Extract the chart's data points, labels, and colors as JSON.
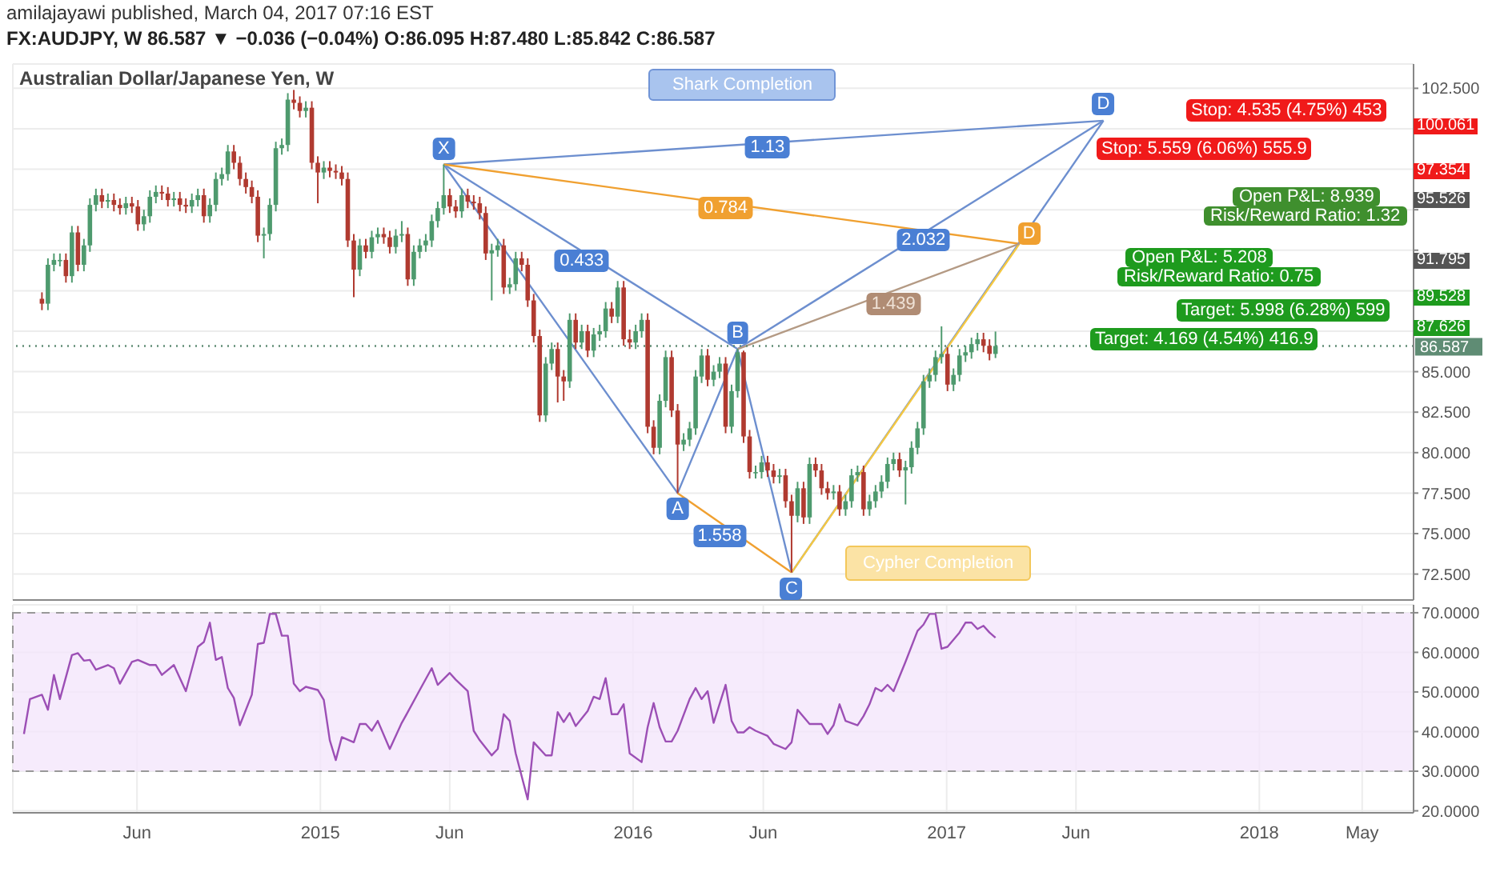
{
  "chart_data": [
    {
      "type": "candlestick",
      "title": "Australian Dollar/Japanese Yen, W",
      "subtitle": "FX:AUDJPY, W 86.587 ▼ −0.036 (−0.04%) O:86.095 H:87.480 L:85.842 C:86.587",
      "colors": [
        "#b03a30",
        "#4e9a6e",
        "#4e9a6e",
        "#4e9a6e",
        "#b03a30",
        "#4e9a6e",
        "#b03a30",
        "#4e9a6e",
        "#4e9a6e",
        "#4e9a6e",
        "#b03a30",
        "#4e9a6e",
        "#b03a30",
        "#b03a30",
        "#4e9a6e",
        "#b03a30",
        "#b03a30",
        "#4e9a6e",
        "#4e9a6e",
        "#4e9a6e",
        "#b03a30",
        "#b03a30",
        "#4e9a6e",
        "#b03a30",
        "#b03a30",
        "#4e9a6e",
        "#4e9a6e",
        "#b03a30",
        "#4e9a6e",
        "#4e9a6e",
        "#4e9a6e",
        "#4e9a6e",
        "#b03a30",
        "#b03a30",
        "#b03a30",
        "#b03a30",
        "#b03a30",
        "#4e9a6e",
        "#4e9a6e",
        "#4e9a6e",
        "#4e9a6e",
        "#4e9a6e",
        "#b03a30",
        "#b03a30",
        "#4e9a6e",
        "#b03a30",
        "#b03a30",
        "#4e9a6e",
        "#b03a30",
        "#b03a30",
        "#b03a30",
        "#b03a30",
        "#b03a30",
        "#4e9a6e",
        "#b03a30",
        "#4e9a6e",
        "#4e9a6e",
        "#b03a30",
        "#b03a30",
        "#4e9a6e",
        "#4e9a6e",
        "#b03a30",
        "#4e9a6e",
        "#4e9a6e",
        "#4e9a6e",
        "#4e9a6e",
        "#4e9a6e",
        "#4e9a6e",
        "#b03a30",
        "#b03a30",
        "#4e9a6e",
        "#b03a30",
        "#b03a30",
        "#b03a30",
        "#b03a30",
        "#4e9a6e",
        "#4e9a6e",
        "#b03a30",
        "#4e9a6e",
        "#4e9a6e",
        "#b03a30",
        "#b03a30",
        "#b03a30",
        "#b03a30",
        "#4e9a6e",
        "#4e9a6e",
        "#b03a30",
        "#b03a30",
        "#4e9a6e",
        "#b03a30",
        "#4e9a6e",
        "#b03a30",
        "#4e9a6e",
        "#4e9a6e",
        "#4e9a6e",
        "#b03a30",
        "#4e9a6e",
        "#b03a30",
        "#b03a30",
        "#4e9a6e",
        "#4e9a6e",
        "#b03a30",
        "#b03a30",
        "#4e9a6e",
        "#4e9a6e",
        "#b03a30",
        "#b03a30",
        "#4e9a6e",
        "#4e9a6e",
        "#4e9a6e",
        "#4e9a6e",
        "#b03a30",
        "#4e9a6e",
        "#4e9a6e",
        "#b03a30",
        "#4e9a6e",
        "#4e9a6e",
        "#b03a30",
        "#b03a30",
        "#4e9a6e",
        "#4e9a6e",
        "#b03a30",
        "#b03a30",
        "#4e9a6e",
        "#b03a30",
        "#b03a30",
        "#4e9a6e",
        "#b03a30",
        "#4e9a6e",
        "#b03a30",
        "#b03a30",
        "#b03a30",
        "#4e9a6e",
        "#b03a30",
        "#4e9a6e",
        "#4e9a6e",
        "#4e9a6e",
        "#b03a30",
        "#4e9a6e",
        "#4e9a6e",
        "#4e9a6e",
        "#4e9a6e",
        "#4e9a6e",
        "#b03a30",
        "#4e9a6e",
        "#4e9a6e",
        "#4e9a6e",
        "#4e9a6e",
        "#4e9a6e",
        "#4e9a6e",
        "#4e9a6e",
        "#b03a30",
        "#4e9a6e",
        "#4e9a6e",
        "#4e9a6e",
        "#4e9a6e",
        "#4e9a6e",
        "#b03a30",
        "#b03a30",
        "#4e9a6e"
      ],
      "x": [
        "2014-02-10",
        "2014-02-17",
        "2014-02-24",
        "2014-03-03",
        "2014-03-10",
        "2014-03-17",
        "2014-03-24",
        "2014-03-31",
        "2014-04-07",
        "2014-04-14",
        "2014-04-21",
        "2014-04-28",
        "2014-05-05",
        "2014-05-12",
        "2014-05-19",
        "2014-05-26",
        "2014-06-02",
        "2014-06-09",
        "2014-06-16",
        "2014-06-23",
        "2014-06-30",
        "2014-07-07",
        "2014-07-14",
        "2014-07-21",
        "2014-07-28",
        "2014-08-04",
        "2014-08-11",
        "2014-08-18",
        "2014-08-25",
        "2014-09-01",
        "2014-09-08",
        "2014-09-15",
        "2014-09-22",
        "2014-09-29",
        "2014-10-06",
        "2014-10-13",
        "2014-10-20",
        "2014-10-27",
        "2014-11-03",
        "2014-11-10",
        "2014-11-17",
        "2014-11-24",
        "2014-12-01",
        "2014-12-08",
        "2014-12-15",
        "2014-12-22",
        "2014-12-29",
        "2015-01-05",
        "2015-01-12",
        "2015-01-19",
        "2015-01-26",
        "2015-02-02",
        "2015-02-09",
        "2015-02-16",
        "2015-02-23",
        "2015-03-02",
        "2015-03-09",
        "2015-03-16",
        "2015-03-23",
        "2015-03-30",
        "2015-04-06",
        "2015-04-13",
        "2015-04-20",
        "2015-04-27",
        "2015-05-04",
        "2015-05-11",
        "2015-05-18",
        "2015-05-25",
        "2015-06-01",
        "2015-06-08",
        "2015-06-15",
        "2015-06-22",
        "2015-06-29",
        "2015-07-06",
        "2015-07-13",
        "2015-07-20",
        "2015-07-27",
        "2015-08-03",
        "2015-08-10",
        "2015-08-17",
        "2015-08-24",
        "2015-08-31",
        "2015-09-07",
        "2015-09-14",
        "2015-09-21",
        "2015-09-28",
        "2015-10-05",
        "2015-10-12",
        "2015-10-19",
        "2015-10-26",
        "2015-11-02",
        "2015-11-09",
        "2015-11-16",
        "2015-11-23",
        "2015-11-30",
        "2015-12-07",
        "2015-12-14",
        "2015-12-21",
        "2015-12-28",
        "2016-01-04",
        "2016-01-11",
        "2016-01-18",
        "2016-01-25",
        "2016-02-01",
        "2016-02-08",
        "2016-02-15",
        "2016-02-22",
        "2016-02-29",
        "2016-03-07",
        "2016-03-14",
        "2016-03-21",
        "2016-03-28",
        "2016-04-04",
        "2016-04-11",
        "2016-04-18",
        "2016-04-25",
        "2016-05-02",
        "2016-05-09",
        "2016-05-16",
        "2016-05-23",
        "2016-05-30",
        "2016-06-06",
        "2016-06-13",
        "2016-06-20",
        "2016-06-27",
        "2016-07-04",
        "2016-07-11",
        "2016-07-18",
        "2016-07-25",
        "2016-08-01",
        "2016-08-08",
        "2016-08-15",
        "2016-08-22",
        "2016-08-29",
        "2016-09-05",
        "2016-09-12",
        "2016-09-19",
        "2016-09-26",
        "2016-10-03",
        "2016-10-10",
        "2016-10-17",
        "2016-10-24",
        "2016-10-31",
        "2016-11-07",
        "2016-11-14",
        "2016-11-21",
        "2016-11-28",
        "2016-12-05",
        "2016-12-12",
        "2016-12-19",
        "2016-12-26",
        "2017-01-02",
        "2017-01-09",
        "2017-01-16",
        "2017-01-23",
        "2017-01-30",
        "2017-02-06",
        "2017-02-13",
        "2017-02-20",
        "2017-02-27"
      ],
      "ohlc": [
        [
          89.5,
          89.9,
          88.8,
          89.2
        ],
        [
          89.2,
          92.0,
          88.8,
          91.6
        ],
        [
          91.6,
          92.3,
          91.2,
          91.9
        ],
        [
          91.9,
          92.3,
          91.5,
          91.9
        ],
        [
          91.9,
          92.3,
          90.5,
          90.9
        ],
        [
          90.9,
          94.0,
          90.5,
          93.6
        ],
        [
          93.6,
          94.0,
          91.2,
          91.6
        ],
        [
          91.6,
          93.2,
          91.2,
          92.8
        ],
        [
          92.8,
          95.7,
          92.4,
          95.3
        ],
        [
          95.3,
          96.3,
          94.9,
          95.9
        ],
        [
          95.9,
          96.3,
          95.1,
          95.5
        ],
        [
          95.5,
          96.0,
          95.1,
          95.6
        ],
        [
          95.6,
          96.0,
          94.9,
          95.3
        ],
        [
          95.3,
          95.7,
          94.7,
          95.1
        ],
        [
          95.1,
          95.8,
          94.7,
          95.4
        ],
        [
          95.4,
          95.8,
          94.8,
          95.2
        ],
        [
          95.2,
          95.6,
          93.7,
          94.1
        ],
        [
          94.1,
          95.0,
          93.7,
          94.6
        ],
        [
          94.6,
          96.2,
          94.2,
          95.8
        ],
        [
          95.8,
          96.5,
          95.4,
          96.1
        ],
        [
          96.1,
          96.5,
          95.6,
          96.0
        ],
        [
          96.0,
          96.4,
          95.2,
          95.6
        ],
        [
          95.6,
          96.1,
          95.2,
          95.7
        ],
        [
          95.7,
          96.1,
          94.9,
          95.3
        ],
        [
          95.3,
          95.7,
          94.8,
          95.2
        ],
        [
          95.2,
          96.0,
          94.8,
          95.6
        ],
        [
          95.6,
          96.3,
          95.2,
          95.9
        ],
        [
          95.9,
          96.3,
          94.2,
          94.6
        ],
        [
          94.6,
          95.7,
          94.2,
          95.3
        ],
        [
          95.3,
          97.3,
          94.9,
          96.9
        ],
        [
          96.9,
          97.6,
          96.5,
          97.2
        ],
        [
          97.2,
          99.0,
          96.8,
          98.6
        ],
        [
          98.6,
          99.0,
          97.5,
          97.9
        ],
        [
          97.9,
          98.3,
          96.5,
          96.9
        ],
        [
          96.9,
          97.3,
          96.0,
          96.4
        ],
        [
          96.4,
          96.8,
          95.4,
          95.8
        ],
        [
          95.8,
          96.2,
          93.0,
          93.4
        ],
        [
          93.4,
          93.9,
          92.0,
          93.5
        ],
        [
          93.5,
          95.7,
          93.1,
          95.3
        ],
        [
          95.3,
          99.2,
          94.9,
          98.8
        ],
        [
          98.8,
          99.4,
          98.4,
          99.0
        ],
        [
          99.0,
          102.2,
          98.6,
          101.8
        ],
        [
          101.8,
          102.4,
          101.2,
          101.6
        ],
        [
          101.6,
          102.0,
          100.7,
          101.1
        ],
        [
          101.1,
          101.7,
          100.7,
          101.3
        ],
        [
          101.3,
          101.7,
          97.5,
          97.9
        ],
        [
          97.9,
          98.3,
          95.4,
          97.3
        ],
        [
          97.3,
          98.0,
          96.9,
          97.6
        ],
        [
          97.6,
          98.0,
          97.0,
          97.4
        ],
        [
          97.4,
          97.8,
          96.9,
          97.3
        ],
        [
          97.3,
          97.7,
          96.5,
          96.9
        ],
        [
          96.9,
          97.3,
          92.7,
          93.1
        ],
        [
          93.1,
          93.5,
          89.6,
          91.3
        ],
        [
          91.3,
          93.2,
          90.9,
          92.8
        ],
        [
          92.8,
          93.2,
          92.0,
          92.4
        ],
        [
          92.4,
          93.7,
          92.0,
          93.3
        ],
        [
          93.3,
          93.9,
          92.9,
          93.5
        ],
        [
          93.5,
          93.9,
          92.9,
          93.3
        ],
        [
          93.3,
          93.7,
          92.3,
          92.7
        ],
        [
          92.7,
          93.8,
          92.3,
          93.4
        ],
        [
          93.4,
          94.3,
          93.0,
          93.5
        ],
        [
          93.5,
          93.9,
          90.3,
          90.7
        ],
        [
          90.7,
          92.8,
          90.3,
          92.4
        ],
        [
          92.4,
          93.2,
          92.0,
          92.8
        ],
        [
          92.8,
          93.5,
          92.4,
          93.1
        ],
        [
          93.1,
          94.7,
          92.7,
          94.3
        ],
        [
          94.3,
          95.5,
          93.9,
          95.1
        ],
        [
          95.1,
          97.8,
          94.7,
          95.9
        ],
        [
          95.9,
          96.3,
          94.8,
          95.2
        ],
        [
          95.2,
          95.6,
          94.5,
          94.9
        ],
        [
          94.9,
          96.3,
          94.5,
          95.9
        ],
        [
          95.9,
          96.3,
          95.1,
          95.5
        ],
        [
          95.5,
          95.9,
          95.0,
          95.4
        ],
        [
          95.4,
          95.8,
          94.4,
          94.8
        ],
        [
          94.8,
          95.2,
          91.9,
          92.3
        ],
        [
          92.3,
          92.9,
          89.4,
          92.5
        ],
        [
          92.5,
          93.2,
          92.1,
          92.8
        ],
        [
          92.8,
          93.2,
          89.8,
          90.2
        ],
        [
          90.2,
          90.8,
          89.8,
          90.4
        ],
        [
          90.4,
          92.4,
          90.0,
          92.0
        ],
        [
          92.0,
          92.4,
          91.2,
          91.6
        ],
        [
          91.6,
          92.0,
          89.0,
          89.4
        ],
        [
          89.4,
          89.8,
          86.8,
          87.2
        ],
        [
          87.2,
          87.6,
          81.9,
          82.3
        ],
        [
          82.3,
          85.9,
          81.9,
          85.5
        ],
        [
          85.5,
          86.8,
          85.1,
          86.4
        ],
        [
          86.4,
          86.8,
          83.1,
          84.7
        ],
        [
          84.7,
          85.1,
          83.2,
          84.4
        ],
        [
          84.4,
          88.6,
          84.0,
          88.2
        ],
        [
          88.2,
          88.6,
          86.4,
          86.8
        ],
        [
          86.8,
          87.9,
          86.4,
          87.5
        ],
        [
          87.5,
          87.9,
          85.9,
          86.3
        ],
        [
          86.3,
          87.7,
          85.9,
          87.3
        ],
        [
          87.3,
          87.9,
          86.9,
          87.5
        ],
        [
          87.5,
          89.3,
          87.1,
          88.9
        ],
        [
          88.9,
          89.3,
          88.0,
          88.4
        ],
        [
          88.4,
          90.6,
          88.0,
          90.2
        ],
        [
          90.2,
          90.6,
          86.6,
          87.0
        ],
        [
          87.0,
          87.6,
          86.4,
          86.8
        ],
        [
          86.8,
          87.9,
          86.4,
          87.5
        ],
        [
          87.5,
          88.6,
          87.1,
          88.2
        ],
        [
          88.2,
          88.6,
          81.2,
          81.6
        ],
        [
          81.6,
          82.0,
          79.9,
          80.3
        ],
        [
          80.3,
          83.6,
          79.9,
          83.2
        ],
        [
          83.2,
          86.3,
          82.8,
          85.9
        ],
        [
          85.9,
          86.3,
          82.2,
          82.6
        ],
        [
          82.6,
          83.0,
          77.5,
          80.5
        ],
        [
          80.5,
          81.2,
          80.1,
          80.8
        ],
        [
          80.8,
          81.9,
          80.4,
          81.5
        ],
        [
          81.5,
          85.1,
          81.1,
          84.7
        ],
        [
          84.7,
          86.4,
          84.3,
          86.0
        ],
        [
          86.0,
          86.4,
          84.1,
          84.5
        ],
        [
          84.5,
          85.4,
          84.1,
          85.0
        ],
        [
          85.0,
          85.9,
          84.6,
          85.5
        ],
        [
          85.5,
          85.9,
          81.2,
          81.6
        ],
        [
          81.6,
          84.2,
          81.2,
          83.8
        ],
        [
          83.8,
          86.4,
          83.4,
          86.2
        ],
        [
          86.2,
          86.3,
          80.6,
          81.0
        ],
        [
          81.0,
          81.4,
          78.4,
          78.8
        ],
        [
          78.8,
          79.2,
          78.4,
          78.8
        ],
        [
          78.8,
          79.8,
          78.4,
          79.4
        ],
        [
          79.4,
          79.8,
          78.5,
          78.9
        ],
        [
          78.9,
          79.3,
          78.1,
          78.5
        ],
        [
          78.5,
          79.0,
          78.1,
          78.6
        ],
        [
          78.6,
          79.0,
          76.6,
          77.0
        ],
        [
          77.0,
          77.4,
          72.6,
          76.1
        ],
        [
          76.1,
          78.2,
          75.7,
          77.8
        ],
        [
          77.8,
          78.2,
          75.6,
          76.0
        ],
        [
          76.0,
          79.7,
          75.6,
          79.3
        ],
        [
          79.3,
          79.7,
          78.5,
          78.9
        ],
        [
          78.9,
          79.3,
          77.4,
          77.8
        ],
        [
          77.8,
          78.2,
          77.1,
          77.5
        ],
        [
          77.5,
          78.0,
          77.1,
          77.6
        ],
        [
          77.6,
          78.0,
          76.1,
          76.5
        ],
        [
          76.5,
          77.4,
          76.1,
          77.0
        ],
        [
          77.0,
          79.0,
          76.6,
          78.6
        ],
        [
          78.6,
          79.2,
          78.2,
          78.8
        ],
        [
          78.8,
          79.2,
          76.1,
          76.5
        ],
        [
          76.5,
          77.4,
          76.1,
          77.0
        ],
        [
          77.0,
          78.0,
          76.6,
          77.6
        ],
        [
          77.6,
          78.6,
          77.2,
          78.2
        ],
        [
          78.2,
          79.7,
          77.8,
          79.3
        ],
        [
          79.3,
          80.0,
          78.9,
          79.6
        ],
        [
          79.6,
          80.0,
          78.5,
          78.9
        ],
        [
          78.9,
          79.5,
          76.8,
          79.1
        ],
        [
          79.1,
          80.7,
          78.7,
          80.3
        ],
        [
          80.3,
          81.9,
          79.9,
          81.5
        ],
        [
          81.5,
          84.8,
          81.1,
          84.4
        ],
        [
          84.4,
          85.2,
          84.0,
          84.8
        ],
        [
          84.8,
          86.3,
          84.4,
          85.9
        ],
        [
          85.9,
          87.8,
          85.5,
          86.1
        ],
        [
          86.1,
          86.5,
          83.8,
          84.2
        ],
        [
          84.2,
          85.2,
          83.8,
          84.8
        ],
        [
          84.8,
          86.4,
          84.4,
          86.0
        ],
        [
          86.0,
          86.6,
          85.6,
          86.2
        ],
        [
          86.2,
          87.1,
          85.8,
          86.7
        ],
        [
          86.7,
          87.4,
          86.3,
          87.0
        ],
        [
          87.0,
          87.4,
          86.2,
          86.6
        ],
        [
          86.6,
          87.0,
          85.7,
          86.1
        ],
        [
          86.095,
          87.48,
          85.842,
          86.587
        ]
      ],
      "series": [
        {
          "type": "line",
          "color": "#6d8fcf",
          "x": [
            "2015-05-25",
            "2016-02-22",
            "2016-05-02",
            "2016-07-04"
          ],
          "values": [
            97.8,
            77.5,
            86.4,
            72.6
          ]
        },
        {
          "type": "line",
          "color": "#6d8fcf",
          "x": [
            "2015-05-25",
            "2016-05-02"
          ],
          "values": [
            97.8,
            86.4
          ]
        },
        {
          "type": "line",
          "color": "#f0a030",
          "x": [
            "2016-02-22",
            "2016-07-04"
          ],
          "values": [
            77.5,
            72.6
          ]
        },
        {
          "type": "line",
          "color": "#6d8fcf",
          "x": [
            "2015-05-25",
            "2017-07-03"
          ],
          "values": [
            97.8,
            100.5
          ]
        },
        {
          "type": "line",
          "color": "#f0a030",
          "x": [
            "2015-05-25",
            "2017-03-27"
          ],
          "values": [
            97.8,
            92.9
          ]
        },
        {
          "type": "line",
          "color": "#6d8fcf",
          "x": [
            "2016-07-04",
            "2017-07-03"
          ],
          "values": [
            72.6,
            100.5
          ]
        },
        {
          "type": "line",
          "color": "#6d8fcf",
          "x": [
            "2016-05-02",
            "2017-07-03"
          ],
          "values": [
            86.4,
            100.5
          ]
        },
        {
          "type": "line",
          "color": "#f5c842",
          "x": [
            "2016-07-04",
            "2017-03-27"
          ],
          "values": [
            72.6,
            92.9
          ]
        },
        {
          "type": "line",
          "color": "#b49a84",
          "x": [
            "2016-05-02",
            "2017-03-27"
          ],
          "values": [
            86.4,
            92.9
          ]
        }
      ],
      "annotations": [
        "amilajayawi published, March 04, 2017 07:16 EST",
        {
          "text": "X",
          "x": "2015-05-25",
          "y": 97.8
        },
        {
          "text": "A",
          "x": "2016-02-22",
          "y": 77.5
        },
        {
          "text": "B",
          "x": "2016-05-02",
          "y": 86.4
        },
        {
          "text": "C",
          "x": "2016-07-04",
          "y": 72.6
        },
        {
          "text": "D",
          "x": "2017-07-03",
          "y": 100.5
        },
        {
          "text": "D",
          "x": "2017-03-27",
          "y": 92.9
        },
        {
          "text": "0.433",
          "x": "2015-11-02",
          "y": 91.8
        },
        {
          "text": "1.558",
          "x": "2016-04-11",
          "y": 74.9
        },
        {
          "text": "1.13",
          "x": "2016-06-06",
          "y": 98.9
        },
        {
          "text": "0.784",
          "x": "2016-04-18",
          "y": 95.1
        },
        {
          "text": "2.032",
          "x": "2016-12-05",
          "y": 93.1
        },
        {
          "text": "1.439",
          "x": "2016-10-31",
          "y": 89.2
        },
        "Shark Completion",
        "Cypher Completion",
        "Stop: 4.535 (4.75%) 453",
        "Stop: 5.559 (6.06%) 555.9",
        "Open P&L: 8.939",
        "Risk/Reward Ratio: 1.32",
        "Open P&L: 5.208",
        "Risk/Reward Ratio: 0.75",
        "Target: 5.998 (6.28%) 599",
        "Target: 4.169 (4.54%) 416.9",
        "100.061",
        "97.354",
        "95.526",
        "91.795",
        "89.528",
        "87.626"
      ],
      "ref_lines": [
        {
          "axis": "y",
          "value": 86.587,
          "label": "86.587",
          "color": "#5f8c74",
          "line_style": "dotted"
        }
      ],
      "xlim": [
        "2014-01-07",
        "2018-06-30"
      ],
      "xticks": [
        {
          "value": "2014-06-01",
          "label": null
        },
        {
          "value": "2015-01-01",
          "label": null
        },
        {
          "value": "2015-06-01",
          "label": null
        },
        {
          "value": "2016-01-01",
          "label": null
        },
        {
          "value": "2016-06-01",
          "label": null
        },
        {
          "value": "2017-01-01",
          "label": null
        },
        {
          "value": "2017-06-01",
          "label": null
        },
        {
          "value": "2018-01-01",
          "label": null
        },
        {
          "value": "2018-05-01",
          "label": null
        }
      ],
      "ylim": [
        70.9,
        104.0
      ],
      "yticks": [
        {
          "value": 72.5,
          "label": "72.500"
        },
        {
          "value": 75,
          "label": "75.000"
        },
        {
          "value": 77.5,
          "label": "77.500"
        },
        {
          "value": 80,
          "label": "80.000"
        },
        {
          "value": 82.5,
          "label": "82.500"
        },
        {
          "value": 85,
          "label": "85.000"
        },
        {
          "value": 87.5,
          "label": null
        },
        {
          "value": 90,
          "label": null
        },
        {
          "value": 92.5,
          "label": null
        },
        {
          "value": 95,
          "label": null
        },
        {
          "value": 97.5,
          "label": null
        },
        {
          "value": 100,
          "label": null
        },
        {
          "value": 102.5,
          "label": "102.500"
        }
      ],
      "tick_labels": "y",
      "grid": true
    },
    {
      "type": "line",
      "color": "#9c4fb5",
      "x": [
        "2014-01-20",
        "2014-01-27",
        "2014-02-10",
        "2014-02-17",
        "2014-02-24",
        "2014-03-03",
        "2014-03-17",
        "2014-03-24",
        "2014-03-31",
        "2014-04-07",
        "2014-04-14",
        "2014-04-28",
        "2014-05-05",
        "2014-05-12",
        "2014-05-26",
        "2014-06-02",
        "2014-06-16",
        "2014-06-23",
        "2014-06-30",
        "2014-07-14",
        "2014-07-28",
        "2014-08-11",
        "2014-08-18",
        "2014-08-25",
        "2014-09-01",
        "2014-09-08",
        "2014-09-15",
        "2014-09-22",
        "2014-09-29",
        "2014-10-13",
        "2014-10-20",
        "2014-10-27",
        "2014-11-03",
        "2014-11-10",
        "2014-11-17",
        "2014-11-24",
        "2014-12-01",
        "2014-12-08",
        "2014-12-15",
        "2014-12-29",
        "2015-01-05",
        "2015-01-12",
        "2015-01-19",
        "2015-01-26",
        "2015-02-09",
        "2015-02-16",
        "2015-02-23",
        "2015-03-02",
        "2015-03-09",
        "2015-03-23",
        "2015-04-06",
        "2015-04-13",
        "2015-04-27",
        "2015-05-11",
        "2015-05-18",
        "2015-06-01",
        "2015-06-08",
        "2015-06-22",
        "2015-06-29",
        "2015-07-06",
        "2015-07-20",
        "2015-07-27",
        "2015-08-03",
        "2015-08-10",
        "2015-08-17",
        "2015-08-31",
        "2015-09-07",
        "2015-09-21",
        "2015-09-28",
        "2015-10-05",
        "2015-10-12",
        "2015-10-19",
        "2015-10-26",
        "2015-11-09",
        "2015-11-16",
        "2015-11-23",
        "2015-11-30",
        "2015-12-07",
        "2015-12-14",
        "2015-12-21",
        "2015-12-28",
        "2016-01-11",
        "2016-01-18",
        "2016-01-25",
        "2016-02-01",
        "2016-02-08",
        "2016-02-15",
        "2016-02-22",
        "2016-03-07",
        "2016-03-14",
        "2016-03-21",
        "2016-03-28",
        "2016-04-04",
        "2016-04-18",
        "2016-04-25",
        "2016-05-02",
        "2016-05-09",
        "2016-05-16",
        "2016-05-23",
        "2016-06-06",
        "2016-06-13",
        "2016-06-27",
        "2016-07-04",
        "2016-07-11",
        "2016-07-25",
        "2016-08-08",
        "2016-08-15",
        "2016-08-22",
        "2016-08-29",
        "2016-09-05",
        "2016-09-19",
        "2016-09-26",
        "2016-10-03",
        "2016-10-10",
        "2016-10-17",
        "2016-10-24",
        "2016-10-31",
        "2016-11-14",
        "2016-11-28",
        "2016-12-05",
        "2016-12-12",
        "2016-12-19",
        "2016-12-26",
        "2017-01-02",
        "2017-01-16",
        "2017-01-23",
        "2017-01-30",
        "2017-02-06",
        "2017-02-13",
        "2017-02-20",
        "2017-02-27"
      ],
      "values": [
        39.4,
        48.2,
        49.3,
        45.5,
        54.3,
        48.2,
        59.3,
        59.8,
        57.9,
        58.1,
        55.6,
        56.8,
        56.0,
        52.1,
        57.6,
        58.1,
        56.8,
        56.8,
        54.3,
        56.8,
        50.2,
        61.4,
        62.6,
        67.5,
        58.1,
        58.8,
        51.0,
        48.5,
        41.6,
        49.3,
        62.1,
        62.4,
        69.7,
        69.7,
        64.2,
        64.2,
        52.1,
        50.2,
        51.3,
        50.5,
        48.0,
        37.8,
        32.8,
        38.6,
        37.3,
        41.9,
        41.9,
        40.2,
        42.7,
        35.6,
        42.2,
        44.9,
        50.5,
        56.0,
        51.8,
        54.8,
        53.1,
        50.2,
        40.2,
        37.8,
        34.0,
        35.6,
        44.4,
        42.7,
        34.5,
        22.9,
        37.3,
        34.0,
        34.0,
        44.9,
        42.4,
        44.7,
        41.4,
        45.2,
        48.8,
        48.2,
        53.5,
        44.4,
        44.4,
        46.9,
        34.5,
        32.3,
        41.1,
        47.2,
        41.1,
        37.5,
        37.5,
        40.2,
        48.2,
        51.0,
        48.2,
        50.2,
        42.2,
        51.8,
        42.7,
        39.8,
        39.8,
        41.1,
        40.2,
        38.9,
        36.9,
        35.6,
        37.3,
        45.5,
        41.9,
        41.9,
        39.4,
        41.6,
        46.9,
        42.7,
        41.6,
        43.9,
        46.9,
        51.0,
        50.2,
        51.8,
        50.2,
        57.6,
        65.4,
        67.0,
        69.7,
        69.7,
        60.9,
        61.4,
        65.0,
        67.5,
        67.5,
        65.9,
        66.7,
        65.0,
        63.7
      ],
      "bands": [
        {
          "axis": "y",
          "from": 30,
          "to": 70,
          "color": "#f4e6fb"
        }
      ],
      "xlim": [
        "2014-01-07",
        "2018-06-30"
      ],
      "xticks": [
        {
          "value": "2014-06-01",
          "label": "Jun"
        },
        {
          "value": "2015-01-01",
          "label": "2015"
        },
        {
          "value": "2015-06-01",
          "label": "Jun"
        },
        {
          "value": "2016-01-01",
          "label": "2016"
        },
        {
          "value": "2016-06-01",
          "label": "Jun"
        },
        {
          "value": "2017-01-01",
          "label": "2017"
        },
        {
          "value": "2017-06-01",
          "label": "Jun"
        },
        {
          "value": "2018-01-01",
          "label": "2018"
        },
        {
          "value": "2018-05-01",
          "label": "May"
        }
      ],
      "ylim": [
        19.5,
        72.0
      ],
      "yticks": [
        {
          "value": 20,
          "label": "20.0000"
        },
        {
          "value": 30,
          "label": "30.0000"
        },
        {
          "value": 40,
          "label": "40.0000"
        },
        {
          "value": 50,
          "label": "50.0000"
        },
        {
          "value": 60,
          "label": "60.0000"
        },
        {
          "value": 70,
          "label": "70.0000"
        }
      ],
      "grid": true
    }
  ]
}
